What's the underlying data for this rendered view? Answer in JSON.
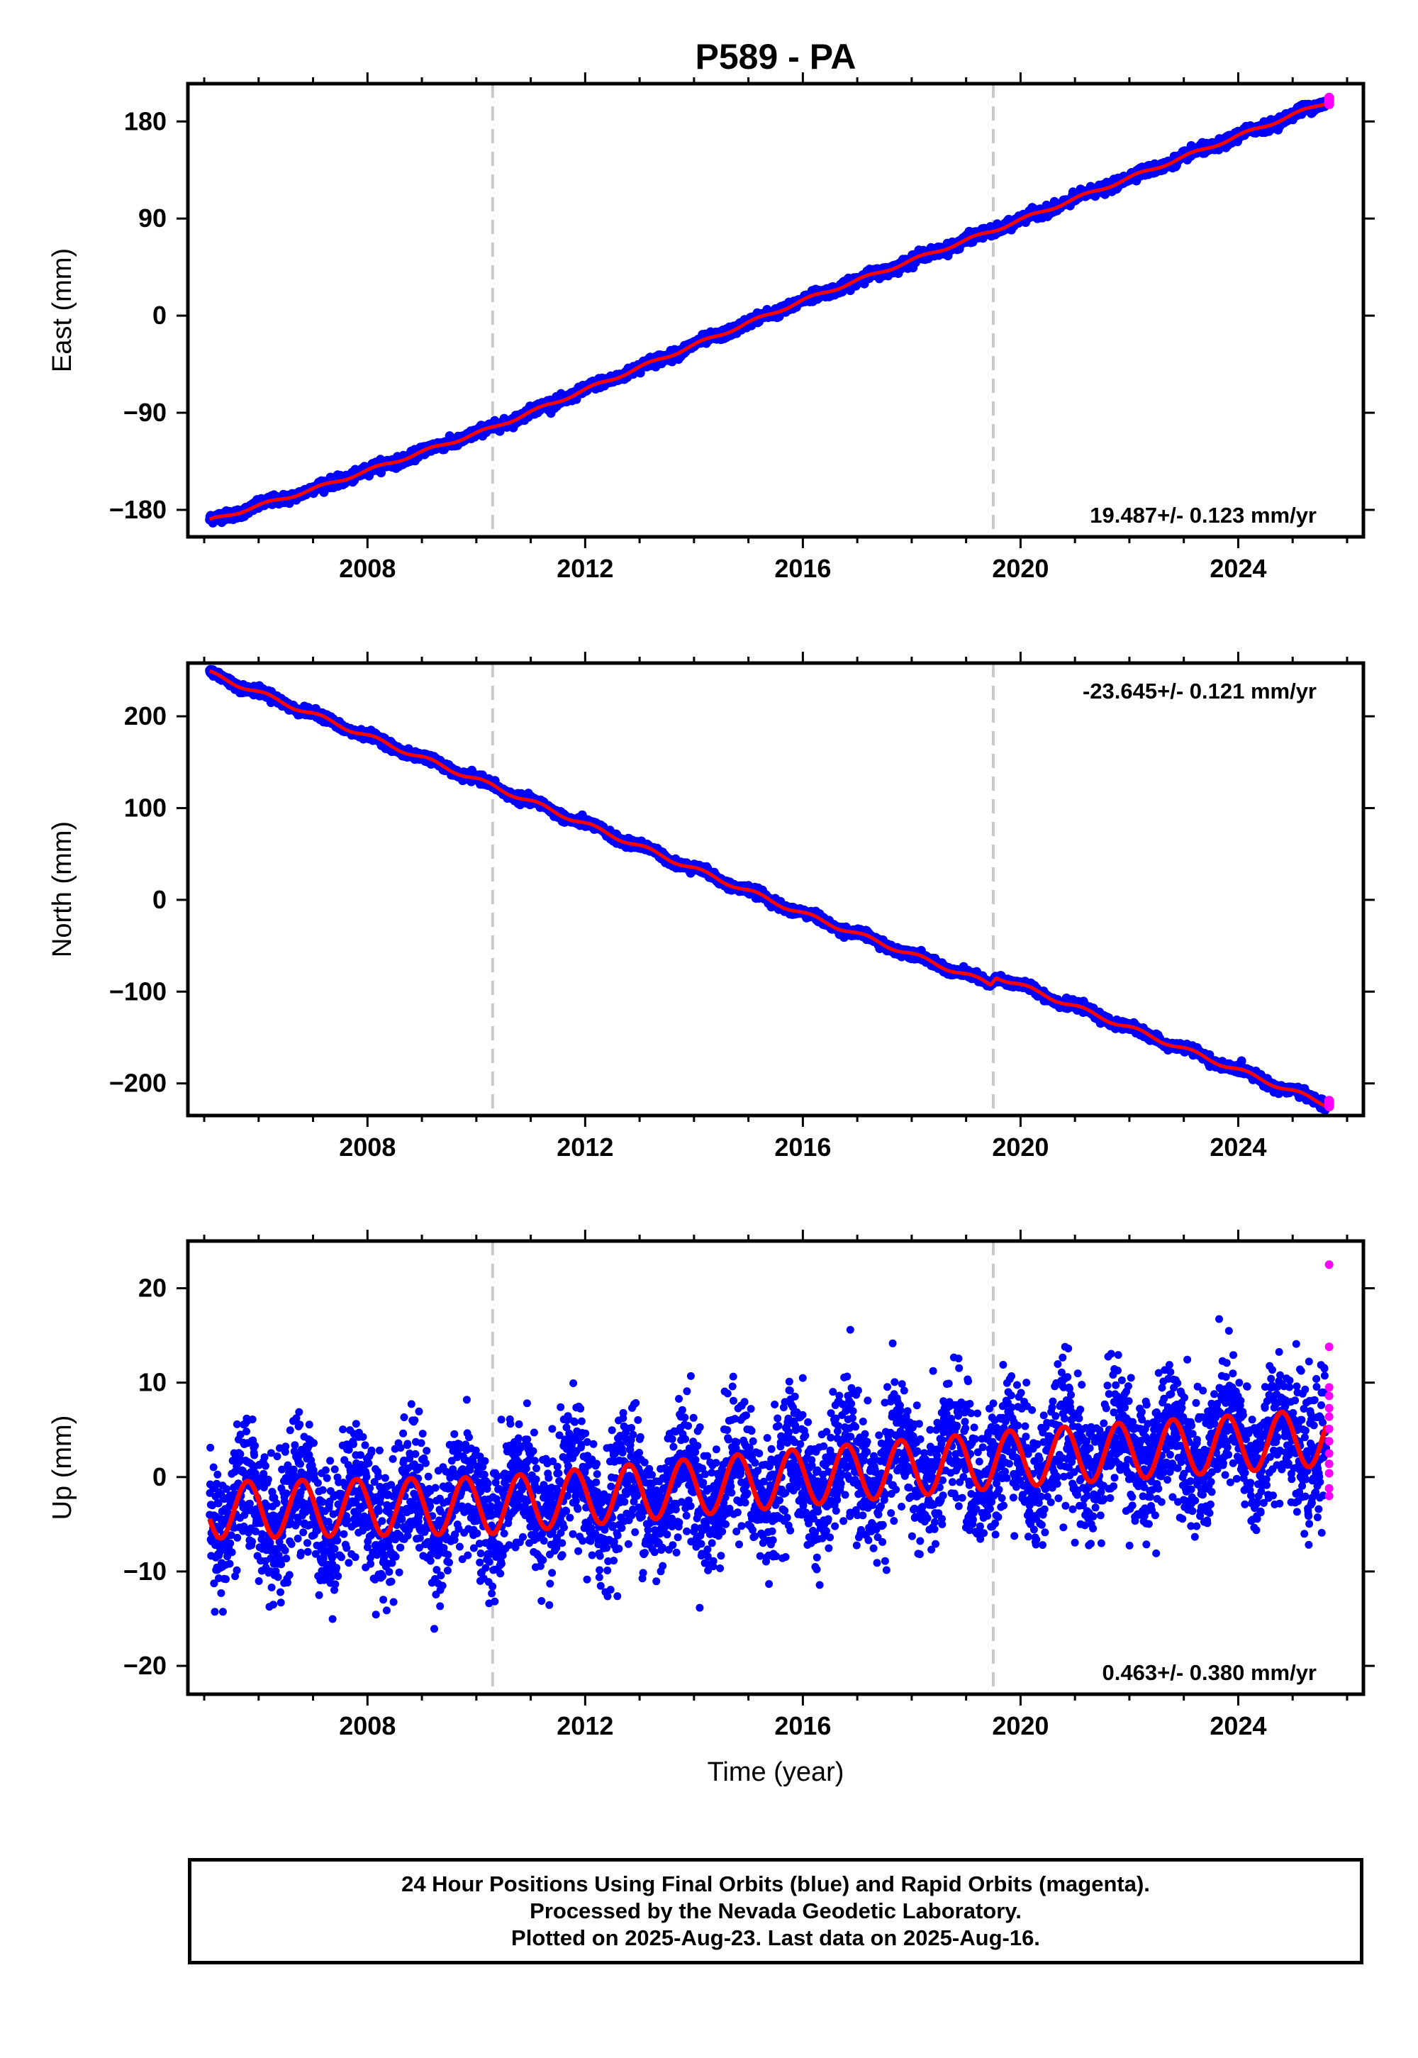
{
  "chart_data": {
    "type": "scatter",
    "title": "P589 - PA",
    "xlabel": "Time (year)",
    "xlim": [
      2004.7,
      2026.3
    ],
    "x_ticks": [
      2008,
      2012,
      2016,
      2020,
      2024
    ],
    "x_tick_labels": [
      "2008",
      "2012",
      "2016",
      "2020",
      "2024"
    ],
    "x_minor_step": 1,
    "vertical_dashed_lines": [
      2010.3,
      2019.5
    ],
    "colors": {
      "final_orbits": "#0000ff",
      "rapid_orbits": "#ff00ff",
      "model": "#ff0000",
      "event_lines": "#c8c8c8",
      "frame": "#000000"
    },
    "panels": [
      {
        "name": "east",
        "ylabel": "East (mm)",
        "ylim": [
          -205,
          215
        ],
        "y_ticks": [
          -180,
          -90,
          0,
          90,
          180
        ],
        "y_tick_labels": [
          "−180",
          "−90",
          "0",
          "90",
          "180"
        ],
        "rate_text": "19.487+/- 0.123 mm/yr",
        "rate_position": "bottom-right",
        "start_year": 2005.1,
        "end_year": 2025.62,
        "start_value": -190,
        "rate_mm_yr": 19.487,
        "seasonal_amplitude": 1.5,
        "noise_mm": 2.2,
        "model_wiggles": [
          {
            "year": 2005.1,
            "value": -190
          },
          {
            "year": 2007.0,
            "value": -161
          },
          {
            "year": 2010.3,
            "value": -104
          },
          {
            "year": 2016.0,
            "value": 14
          },
          {
            "year": 2019.5,
            "value": 79
          },
          {
            "year": 2025.62,
            "value": 198
          }
        ]
      },
      {
        "name": "north",
        "ylabel": "North (mm)",
        "ylim": [
          -235,
          258
        ],
        "y_ticks": [
          -200,
          -100,
          0,
          100,
          200
        ],
        "y_tick_labels": [
          "−200",
          "−100",
          "0",
          "100",
          "200"
        ],
        "rate_text": "-23.645+/- 0.121 mm/yr",
        "rate_position": "top-right",
        "start_year": 2005.1,
        "end_year": 2025.62,
        "start_value": 247,
        "rate_mm_yr": -23.645,
        "seasonal_amplitude": 2.5,
        "noise_mm": 2.2,
        "offset_at_2019_5": 10,
        "model_wiggles": [
          {
            "year": 2005.1,
            "value": 247
          },
          {
            "year": 2010.3,
            "value": 124
          },
          {
            "year": 2016.0,
            "value": -15
          },
          {
            "year": 2019.45,
            "value": -92
          },
          {
            "year": 2019.55,
            "value": -83
          },
          {
            "year": 2025.62,
            "value": -223
          }
        ]
      },
      {
        "name": "up",
        "ylabel": "Up (mm)",
        "ylim": [
          -23,
          25
        ],
        "y_ticks": [
          -20,
          -10,
          0,
          10,
          20
        ],
        "y_tick_labels": [
          "−20",
          "−10",
          "0",
          "10",
          "20"
        ],
        "rate_text": "0.463+/- 0.380 mm/yr",
        "rate_position": "bottom-right",
        "start_year": 2005.1,
        "end_year": 2025.62,
        "model_trend": [
          {
            "year": 2005.1,
            "value": -3.5
          },
          {
            "year": 2010.3,
            "value": -3.0
          },
          {
            "year": 2016.0,
            "value": 0.0
          },
          {
            "year": 2020.0,
            "value": 2.0
          },
          {
            "year": 2025.62,
            "value": 4.2
          }
        ],
        "seasonal_amplitude": 3.0,
        "seasonal_phase_peak": 0.8,
        "noise_mm": 3.5,
        "rapid_orbit_values": [
          22.5,
          13.8,
          9.5,
          8.6,
          7.3,
          6.4,
          5.1,
          3.8,
          2.5,
          1.4,
          0.4,
          -1.2,
          -2.0
        ]
      }
    ]
  },
  "footer": {
    "line1": "24 Hour Positions Using Final Orbits (blue) and Rapid Orbits (magenta).",
    "line2": "Processed by the Nevada Geodetic Laboratory.",
    "line3": "Plotted on 2025-Aug-23. Last data on 2025-Aug-16."
  }
}
